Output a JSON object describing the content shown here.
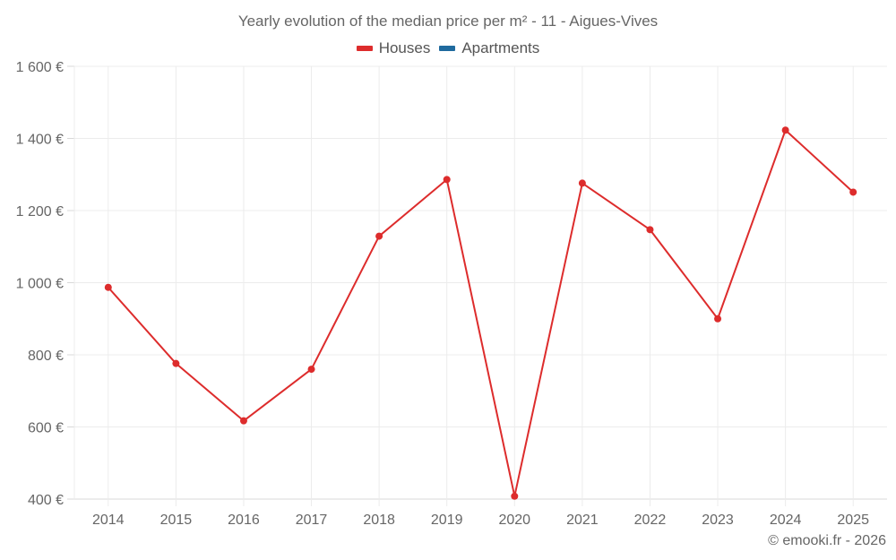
{
  "chart_data": {
    "type": "line",
    "title": "Yearly evolution of the median price per m² - 11 - Aigues-Vives",
    "xlabel": "",
    "ylabel": "",
    "categories": [
      "2014",
      "2015",
      "2016",
      "2017",
      "2018",
      "2019",
      "2020",
      "2021",
      "2022",
      "2023",
      "2024",
      "2025"
    ],
    "series": [
      {
        "name": "Houses",
        "color": "#dd2c2c",
        "values": [
          987,
          776,
          617,
          760,
          1129,
          1286,
          408,
          1276,
          1147,
          900,
          1423,
          1251
        ]
      },
      {
        "name": "Apartments",
        "color": "#1f6a9e",
        "values": []
      }
    ],
    "ylim": [
      400,
      1600
    ],
    "yticks": [
      400,
      600,
      800,
      1000,
      1200,
      1400,
      1600
    ],
    "ytick_labels": [
      "400 €",
      "600 €",
      "800 €",
      "1 000 €",
      "1 200 €",
      "1 400 €",
      "1 600 €"
    ],
    "grid": true,
    "legend_position": "top"
  },
  "header": {
    "title": "Yearly evolution of the median price per m² - 11 - Aigues-Vives"
  },
  "legend": {
    "items": [
      {
        "label": "Houses",
        "color": "#dd2c2c"
      },
      {
        "label": "Apartments",
        "color": "#1f6a9e"
      }
    ]
  },
  "footer": {
    "credit": "© emooki.fr - 2026"
  }
}
